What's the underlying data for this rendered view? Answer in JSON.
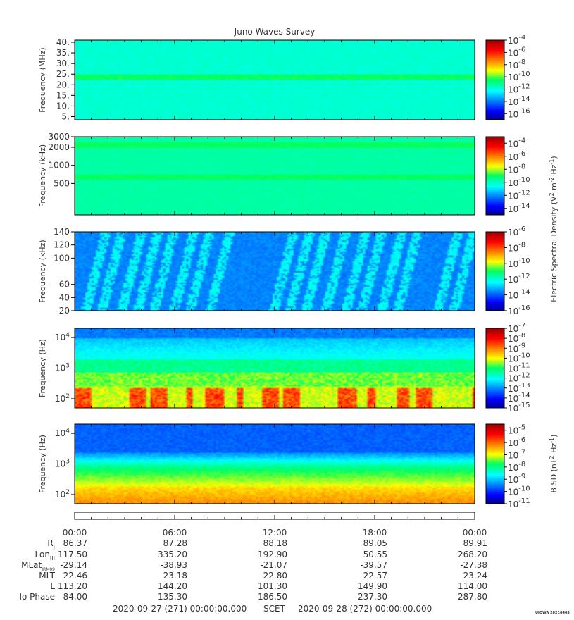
{
  "chart_data": {
    "type": "heatmap",
    "title": "Juno Waves Survey",
    "panels": [
      {
        "ylabel": "Frequency (MHz)",
        "scale": "linear",
        "ylim": [
          3.5,
          41
        ],
        "yticks": [
          {
            "v": 5,
            "label": "5."
          },
          {
            "v": 10,
            "label": "10."
          },
          {
            "v": 15,
            "label": "15."
          },
          {
            "v": 20,
            "label": "20."
          },
          {
            "v": 25,
            "label": "25."
          },
          {
            "v": 30,
            "label": "30."
          },
          {
            "v": 35,
            "label": "35."
          },
          {
            "v": 40,
            "label": "40."
          }
        ],
        "colorbar": {
          "exp_range": [
            -17,
            -4
          ],
          "labels": [
            -4,
            -6,
            -8,
            -10,
            -12,
            -14,
            -16
          ]
        }
      },
      {
        "ylabel": "Frequency (kHz)",
        "scale": "log",
        "ylim": [
          150,
          3000
        ],
        "yticks": [
          {
            "v": 500,
            "label": "500"
          },
          {
            "v": 1000,
            "label": "1000"
          },
          {
            "v": 2000,
            "label": "2000"
          },
          {
            "v": 3000,
            "label": "3000"
          }
        ],
        "colorbar": {
          "exp_range": [
            -15,
            -3
          ],
          "labels": [
            -4,
            -6,
            -8,
            -10,
            -12,
            -14
          ]
        }
      },
      {
        "ylabel": "Frequency (kHz)",
        "scale": "linear",
        "ylim": [
          20,
          140
        ],
        "yticks": [
          {
            "v": 20,
            "label": "20"
          },
          {
            "v": 40,
            "label": "40"
          },
          {
            "v": 60,
            "label": "60"
          },
          {
            "v": 100,
            "label": "100"
          },
          {
            "v": 120,
            "label": "120"
          },
          {
            "v": 140,
            "label": "140"
          }
        ],
        "colorbar": {
          "exp_range": [
            -16,
            -6
          ],
          "labels": [
            -6,
            -8,
            -10,
            -12,
            -14,
            -16
          ]
        }
      },
      {
        "ylabel": "Frequency (Hz)",
        "scale": "log",
        "ylim": [
          50,
          20000
        ],
        "yticks": [
          {
            "v": 100,
            "label": "10",
            "sup": "2"
          },
          {
            "v": 1000,
            "label": "10",
            "sup": "3"
          },
          {
            "v": 10000,
            "label": "10",
            "sup": "4"
          }
        ],
        "colorbar": {
          "exp_range": [
            -15,
            -7
          ],
          "labels": [
            -7,
            -8,
            -9,
            -10,
            -11,
            -12,
            -13,
            -14,
            -15
          ]
        }
      },
      {
        "ylabel": "Frequency (Hz)",
        "scale": "log",
        "ylim": [
          50,
          20000
        ],
        "yticks": [
          {
            "v": 100,
            "label": "10",
            "sup": "2"
          },
          {
            "v": 1000,
            "label": "10",
            "sup": "3"
          },
          {
            "v": 10000,
            "label": "10",
            "sup": "4"
          }
        ],
        "colorbar": {
          "exp_range": [
            -11,
            -4.5
          ],
          "labels": [
            -5,
            -6,
            -7,
            -8,
            -9,
            -10,
            -11
          ]
        }
      }
    ],
    "colorbar_group_labels": [
      {
        "label": "Electric Spectral Density (V",
        "sup1": "2",
        "mid": " m",
        "sup2": "-2",
        "mid2": " Hz",
        "sup3": "-1",
        "end": ")"
      },
      {
        "label": "B SD (nT",
        "sup1": "2",
        "mid": " Hz",
        "sup2": "-1",
        "end": ")"
      }
    ],
    "colorbar_base": "10",
    "time_ticks": [
      "00:00",
      "06:00",
      "12:00",
      "18:00",
      "00:00"
    ],
    "ephemeris": [
      {
        "label": "R",
        "sub": "j",
        "values": [
          "86.37",
          "87.28",
          "88.18",
          "89.05",
          "89.91"
        ]
      },
      {
        "label": "Lon",
        "sub": "III",
        "values": [
          "117.50",
          "335.20",
          "192.90",
          "50.55",
          "268.20"
        ]
      },
      {
        "label": "MLat",
        "sub": "JRM09",
        "values": [
          "-29.14",
          "-38.93",
          "-21.07",
          "-39.57",
          "-27.38"
        ]
      },
      {
        "label": "MLT",
        "sub": "",
        "values": [
          "22.46",
          "23.18",
          "22.80",
          "22.57",
          "23.24"
        ]
      },
      {
        "label": "L",
        "sub": "",
        "values": [
          "113.20",
          "144.20",
          "101.30",
          "149.90",
          "114.00"
        ]
      },
      {
        "label": "Io Phase",
        "sub": "",
        "values": [
          "84.00",
          "135.30",
          "186.50",
          "237.30",
          "287.80"
        ]
      }
    ]
  },
  "footer": {
    "start": "2020-09-27 (271) 00:00:00.000",
    "scet": "SCET",
    "end": "2020-09-28 (272) 00:00:00.000",
    "stamp": "UIOWA 20210403"
  }
}
